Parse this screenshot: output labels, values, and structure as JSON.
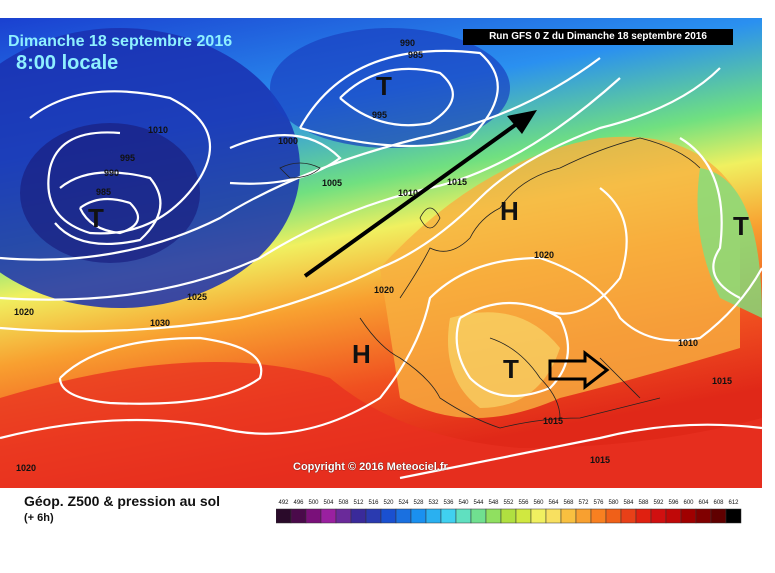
{
  "map": {
    "title_date": "Dimanche 18 septembre 2016",
    "title_time": "8:00 locale",
    "run_label": "Run GFS 0 Z du Dimanche 18 septembre 2016",
    "copyright": "Copyright © 2016 Meteociel.fr",
    "isobars": [
      "990",
      "985",
      "995",
      "1010",
      "995",
      "990",
      "985",
      "1000",
      "1005",
      "1010",
      "1015",
      "1020",
      "1025",
      "1030",
      "1020",
      "1020",
      "1010",
      "1015",
      "1015",
      "1015",
      "1020"
    ],
    "systems": [
      "T",
      "T",
      "H",
      "H",
      "T",
      "T"
    ]
  },
  "legend": {
    "title": "Géop. Z500 & pression au sol",
    "subtitle": "(+ 6h)",
    "ticks": [
      "492",
      "496",
      "500",
      "504",
      "508",
      "512",
      "516",
      "520",
      "524",
      "528",
      "532",
      "536",
      "540",
      "544",
      "548",
      "552",
      "556",
      "560",
      "564",
      "568",
      "572",
      "576",
      "580",
      "584",
      "588",
      "592",
      "596",
      "600",
      "604",
      "608",
      "612"
    ],
    "colors": [
      "#2a0a2a",
      "#4a0a4a",
      "#7a107a",
      "#9a20a0",
      "#6a2a9a",
      "#3a2a9a",
      "#2a3ab0",
      "#1a50d0",
      "#1a70e0",
      "#1a90f0",
      "#2ab0f0",
      "#40d0f0",
      "#60e0c0",
      "#70e090",
      "#90e060",
      "#b0e040",
      "#d0e840",
      "#f0f060",
      "#f8e060",
      "#f8c040",
      "#f8a030",
      "#f88020",
      "#f06018",
      "#e84018",
      "#e02010",
      "#d01010",
      "#c00808",
      "#a00000",
      "#800000",
      "#600000",
      "#000000"
    ]
  }
}
